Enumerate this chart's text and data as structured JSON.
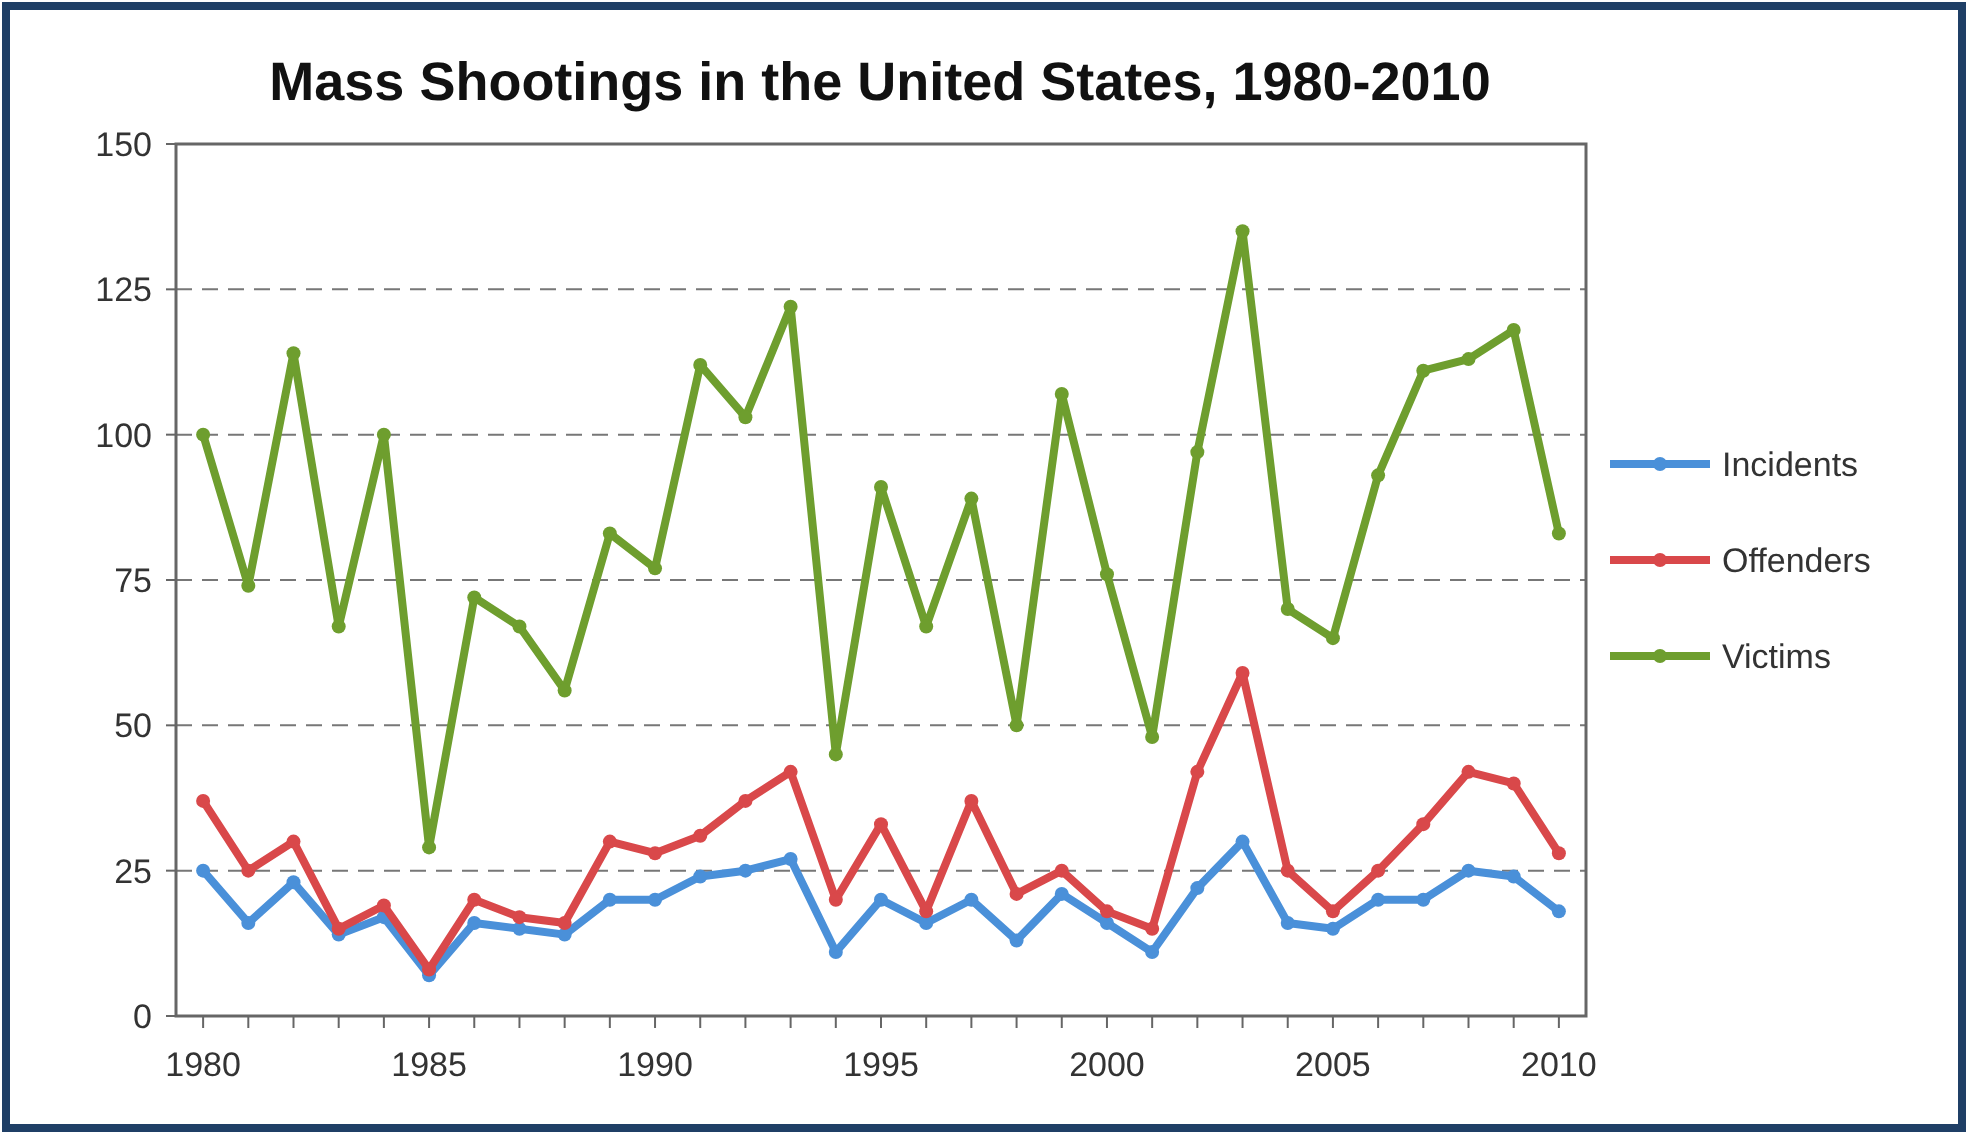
{
  "chart_data": {
    "type": "line",
    "title": "Mass Shootings in the United States, 1980-2010",
    "x": [
      1980,
      1981,
      1982,
      1983,
      1984,
      1985,
      1986,
      1987,
      1988,
      1989,
      1990,
      1991,
      1992,
      1993,
      1994,
      1995,
      1996,
      1997,
      1998,
      1999,
      2000,
      2001,
      2002,
      2003,
      2004,
      2005,
      2006,
      2007,
      2008,
      2009,
      2010
    ],
    "series": [
      {
        "name": "Incidents",
        "color": "#4a90d9",
        "values": [
          25,
          16,
          23,
          14,
          17,
          7,
          16,
          15,
          14,
          20,
          20,
          24,
          25,
          27,
          11,
          20,
          16,
          20,
          13,
          21,
          16,
          11,
          22,
          30,
          16,
          15,
          20,
          20,
          25,
          24,
          18
        ]
      },
      {
        "name": "Offenders",
        "color": "#d9484a",
        "values": [
          37,
          25,
          30,
          15,
          19,
          8,
          20,
          17,
          16,
          30,
          28,
          31,
          37,
          42,
          20,
          33,
          18,
          37,
          21,
          25,
          18,
          15,
          42,
          59,
          25,
          18,
          25,
          33,
          42,
          40,
          28
        ]
      },
      {
        "name": "Victims",
        "color": "#6e9e2e",
        "values": [
          100,
          74,
          114,
          67,
          100,
          29,
          72,
          67,
          56,
          83,
          77,
          112,
          103,
          122,
          45,
          91,
          67,
          89,
          50,
          107,
          76,
          48,
          97,
          135,
          70,
          65,
          93,
          111,
          113,
          118,
          83
        ]
      }
    ],
    "xlim": [
      1979.4,
      2010.6
    ],
    "xticks": [
      1980,
      {
        "value": 1981,
        "label": null
      },
      {
        "value": 1982,
        "label": null
      },
      {
        "value": 1983,
        "label": null
      },
      {
        "value": 1984,
        "label": null
      },
      1985,
      {
        "value": 1986,
        "label": null
      },
      {
        "value": 1987,
        "label": null
      },
      {
        "value": 1988,
        "label": null
      },
      {
        "value": 1989,
        "label": null
      },
      1990,
      {
        "value": 1991,
        "label": null
      },
      {
        "value": 1992,
        "label": null
      },
      {
        "value": 1993,
        "label": null
      },
      {
        "value": 1994,
        "label": null
      },
      1995,
      {
        "value": 1996,
        "label": null
      },
      {
        "value": 1997,
        "label": null
      },
      {
        "value": 1998,
        "label": null
      },
      {
        "value": 1999,
        "label": null
      },
      2000,
      {
        "value": 2001,
        "label": null
      },
      {
        "value": 2002,
        "label": null
      },
      {
        "value": 2003,
        "label": null
      },
      {
        "value": 2004,
        "label": null
      },
      2005,
      {
        "value": 2006,
        "label": null
      },
      {
        "value": 2007,
        "label": null
      },
      {
        "value": 2008,
        "label": null
      },
      {
        "value": 2009,
        "label": null
      },
      2010
    ],
    "ylim": [
      0,
      150
    ],
    "yticks": [
      0,
      25,
      50,
      75,
      100,
      125,
      150
    ],
    "grid": "y",
    "legend": "right",
    "marker": "circle",
    "line_style": "solid"
  }
}
